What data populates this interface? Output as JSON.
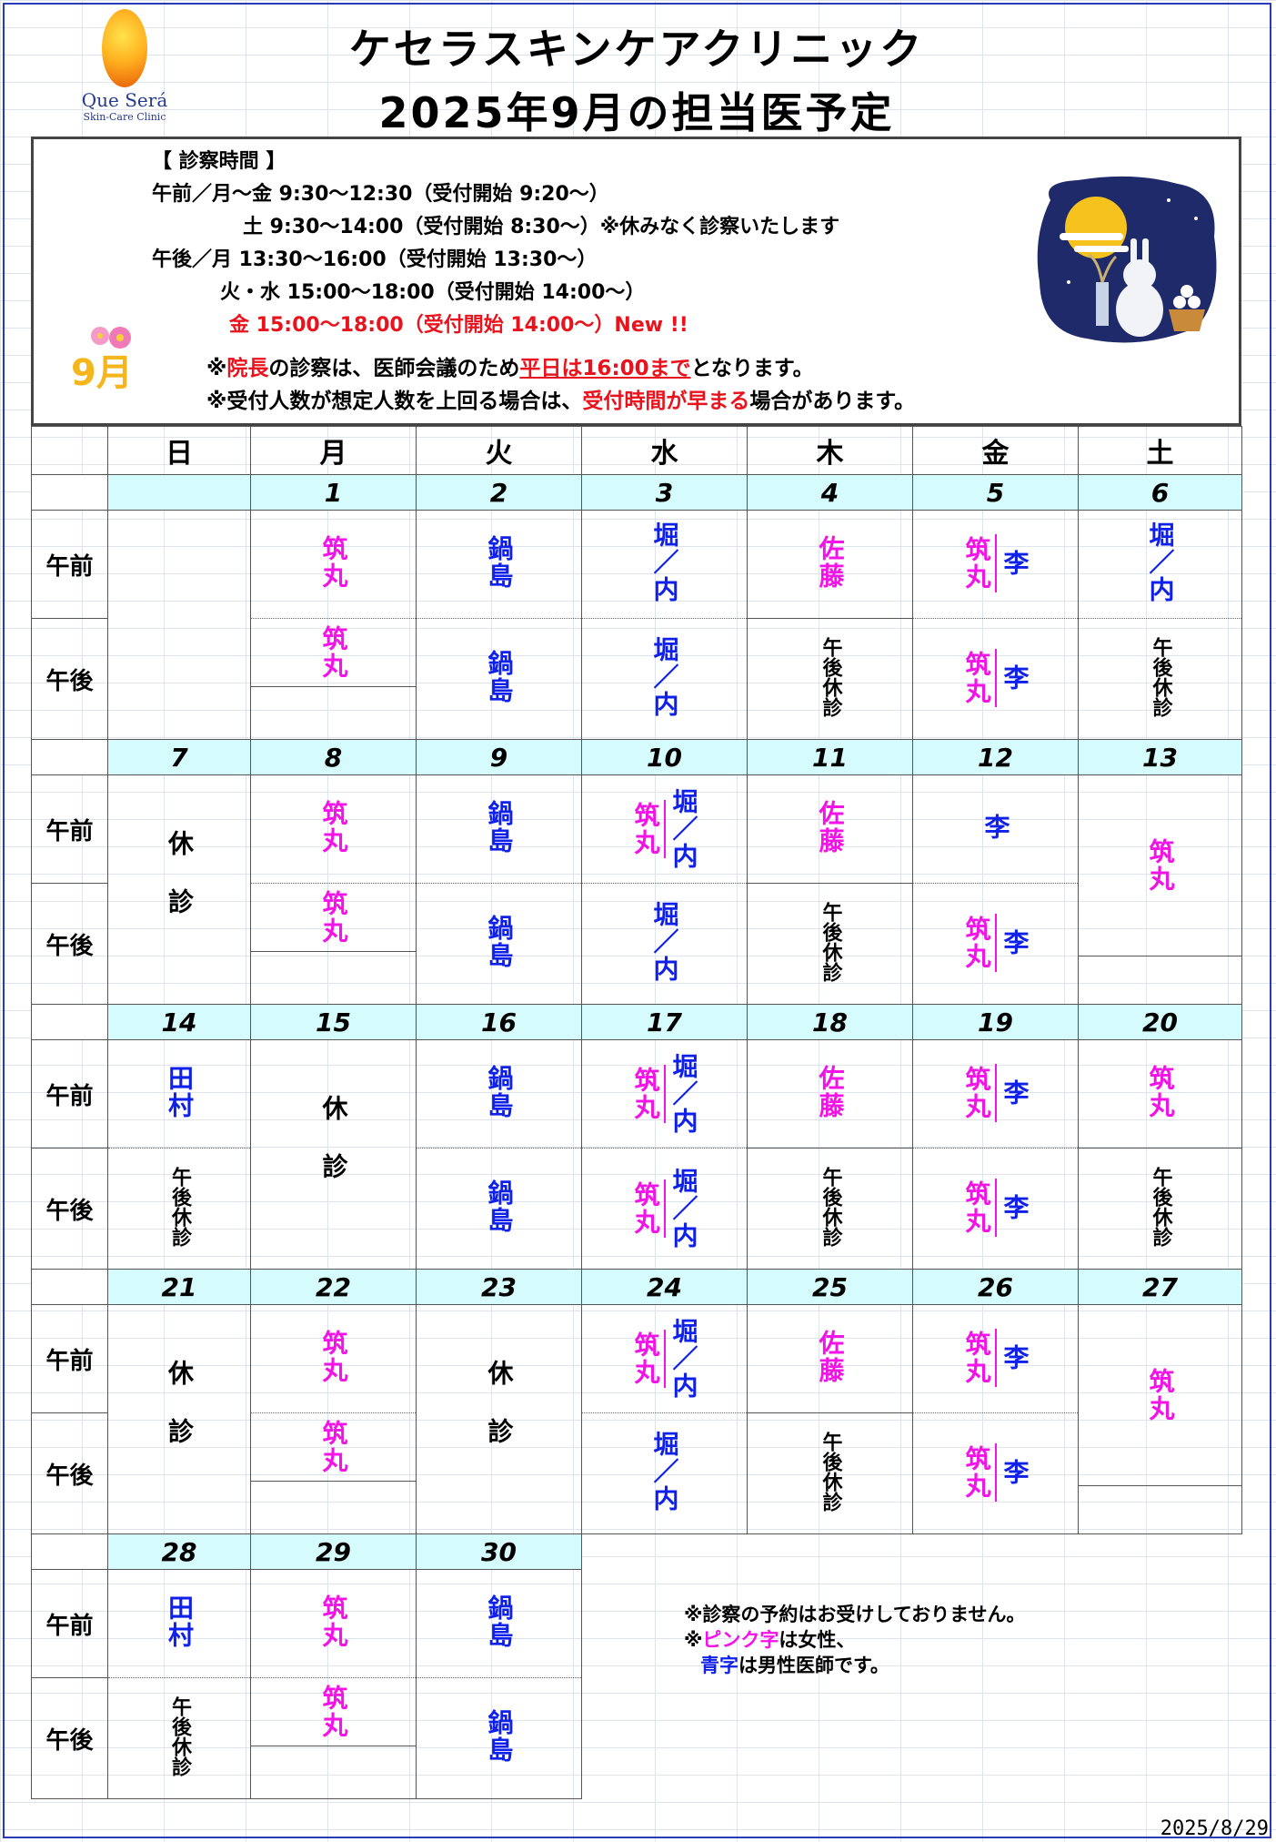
{
  "clinic_name": "ケセラスキンケアクリニック",
  "schedule_title": "2025年9月の担当医予定",
  "logo": {
    "brand": "Que Será",
    "sub": "Skin-Care Clinic"
  },
  "hours": {
    "heading": "【 診察時間 】",
    "lines": [
      "午前／月～金  9:30～12:30（受付開始 9:20～）",
      "土     9:30～14:00（受付開始 8:30～）※休みなく診察いたします",
      "午後／月     13:30～16:00（受付開始 13:30～）",
      "火・水 15:00～18:00（受付開始 14:00～）",
      "金     15:00～18:00（受付開始 14:00～）New !!"
    ]
  },
  "month_badge": "9月",
  "notes_top": {
    "n1_a": "※",
    "n1_b": "院長",
    "n1_c": "の診察は、医師会議のため",
    "n1_d": "平日は16:00まで",
    "n1_e": "となります。",
    "n2_a": "※受付人数が想定人数を上回る場合は、",
    "n2_b": "受付時間が早まる",
    "n2_c": "場合があります。"
  },
  "weekdays": [
    "日",
    "月",
    "火",
    "水",
    "木",
    "金",
    "土"
  ],
  "slot_labels": {
    "am": "午前",
    "pm": "午後"
  },
  "doctors": {
    "tsukumaru": "筑丸",
    "nabeshima": "鍋島",
    "horiuchi": "堀／内",
    "sato": "佐藤",
    "lee": "李",
    "tamura": "田村"
  },
  "closed_pm": "午後休診",
  "closed_day": "休診",
  "dates": {
    "w1": [
      "",
      "1",
      "2",
      "3",
      "4",
      "5",
      "6"
    ],
    "w2": [
      "7",
      "8",
      "9",
      "10",
      "11",
      "12",
      "13"
    ],
    "w3": [
      "14",
      "15",
      "16",
      "17",
      "18",
      "19",
      "20"
    ],
    "w4": [
      "21",
      "22",
      "23",
      "24",
      "25",
      "26",
      "27"
    ],
    "w5": [
      "28",
      "29",
      "30"
    ]
  },
  "bottom_note": {
    "l1": "※診察の予約はお受けしておりません。",
    "l2a": "※",
    "l2b": "ピンク字",
    "l2c": "は女性、",
    "l3a": "青字",
    "l3b": "は男性医師です。"
  },
  "footer_date": "2025/8/29",
  "colors": {
    "female": "#f213e6",
    "male": "#0f20e8",
    "accent": "#e8131d",
    "date_bg": "#d6fbfd"
  }
}
